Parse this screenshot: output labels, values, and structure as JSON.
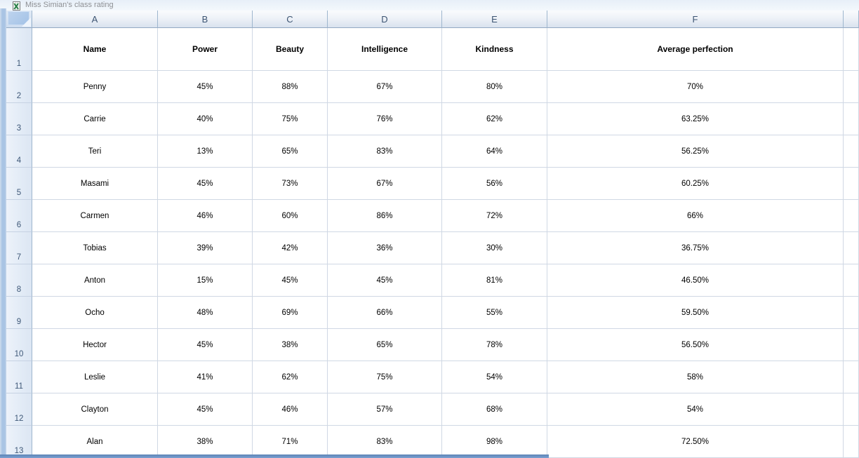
{
  "window": {
    "title": "Miss Simian's class rating",
    "app_icon": "excel-workbook-icon"
  },
  "sheet": {
    "column_letters": [
      "A",
      "B",
      "C",
      "D",
      "E",
      "F",
      ""
    ],
    "header_row": {
      "row_number": "1",
      "cells": [
        "Name",
        "Power",
        "Beauty",
        "Intelligence",
        "Kindness",
        "Average perfection",
        ""
      ]
    },
    "rows": [
      {
        "row_number": "2",
        "cells": [
          "Penny",
          "45%",
          "88%",
          "67%",
          "80%",
          "70%",
          ""
        ]
      },
      {
        "row_number": "3",
        "cells": [
          "Carrie",
          "40%",
          "75%",
          "76%",
          "62%",
          "63.25%",
          ""
        ]
      },
      {
        "row_number": "4",
        "cells": [
          "Teri",
          "13%",
          "65%",
          "83%",
          "64%",
          "56.25%",
          ""
        ]
      },
      {
        "row_number": "5",
        "cells": [
          "Masami",
          "45%",
          "73%",
          "67%",
          "56%",
          "60.25%",
          ""
        ]
      },
      {
        "row_number": "6",
        "cells": [
          "Carmen",
          "46%",
          "60%",
          "86%",
          "72%",
          "66%",
          ""
        ]
      },
      {
        "row_number": "7",
        "cells": [
          "Tobias",
          "39%",
          "42%",
          "36%",
          "30%",
          "36.75%",
          ""
        ]
      },
      {
        "row_number": "8",
        "cells": [
          "Anton",
          "15%",
          "45%",
          "45%",
          "81%",
          "46.50%",
          ""
        ]
      },
      {
        "row_number": "9",
        "cells": [
          "Ocho",
          "48%",
          "69%",
          "66%",
          "55%",
          "59.50%",
          ""
        ]
      },
      {
        "row_number": "10",
        "cells": [
          "Hector",
          "45%",
          "38%",
          "65%",
          "78%",
          "56.50%",
          ""
        ]
      },
      {
        "row_number": "11",
        "cells": [
          "Leslie",
          "41%",
          "62%",
          "75%",
          "54%",
          "58%",
          ""
        ]
      },
      {
        "row_number": "12",
        "cells": [
          "Clayton",
          "45%",
          "46%",
          "57%",
          "68%",
          "54%",
          ""
        ]
      },
      {
        "row_number": "13",
        "cells": [
          "Alan",
          "38%",
          "71%",
          "83%",
          "98%",
          "72.50%",
          ""
        ]
      }
    ]
  },
  "colors": {
    "window_frame_blue": "#a9c4e4",
    "bottom_bar_blue": "#5d84b6",
    "header_border_blue": "#9eb6ce",
    "grid_line": "#d0d8e4",
    "header_text": "#3c5472",
    "title_text": "#8e9094",
    "select_all_fill": "#a3c2e6",
    "excel_icon_green": "#1f7a3f"
  }
}
